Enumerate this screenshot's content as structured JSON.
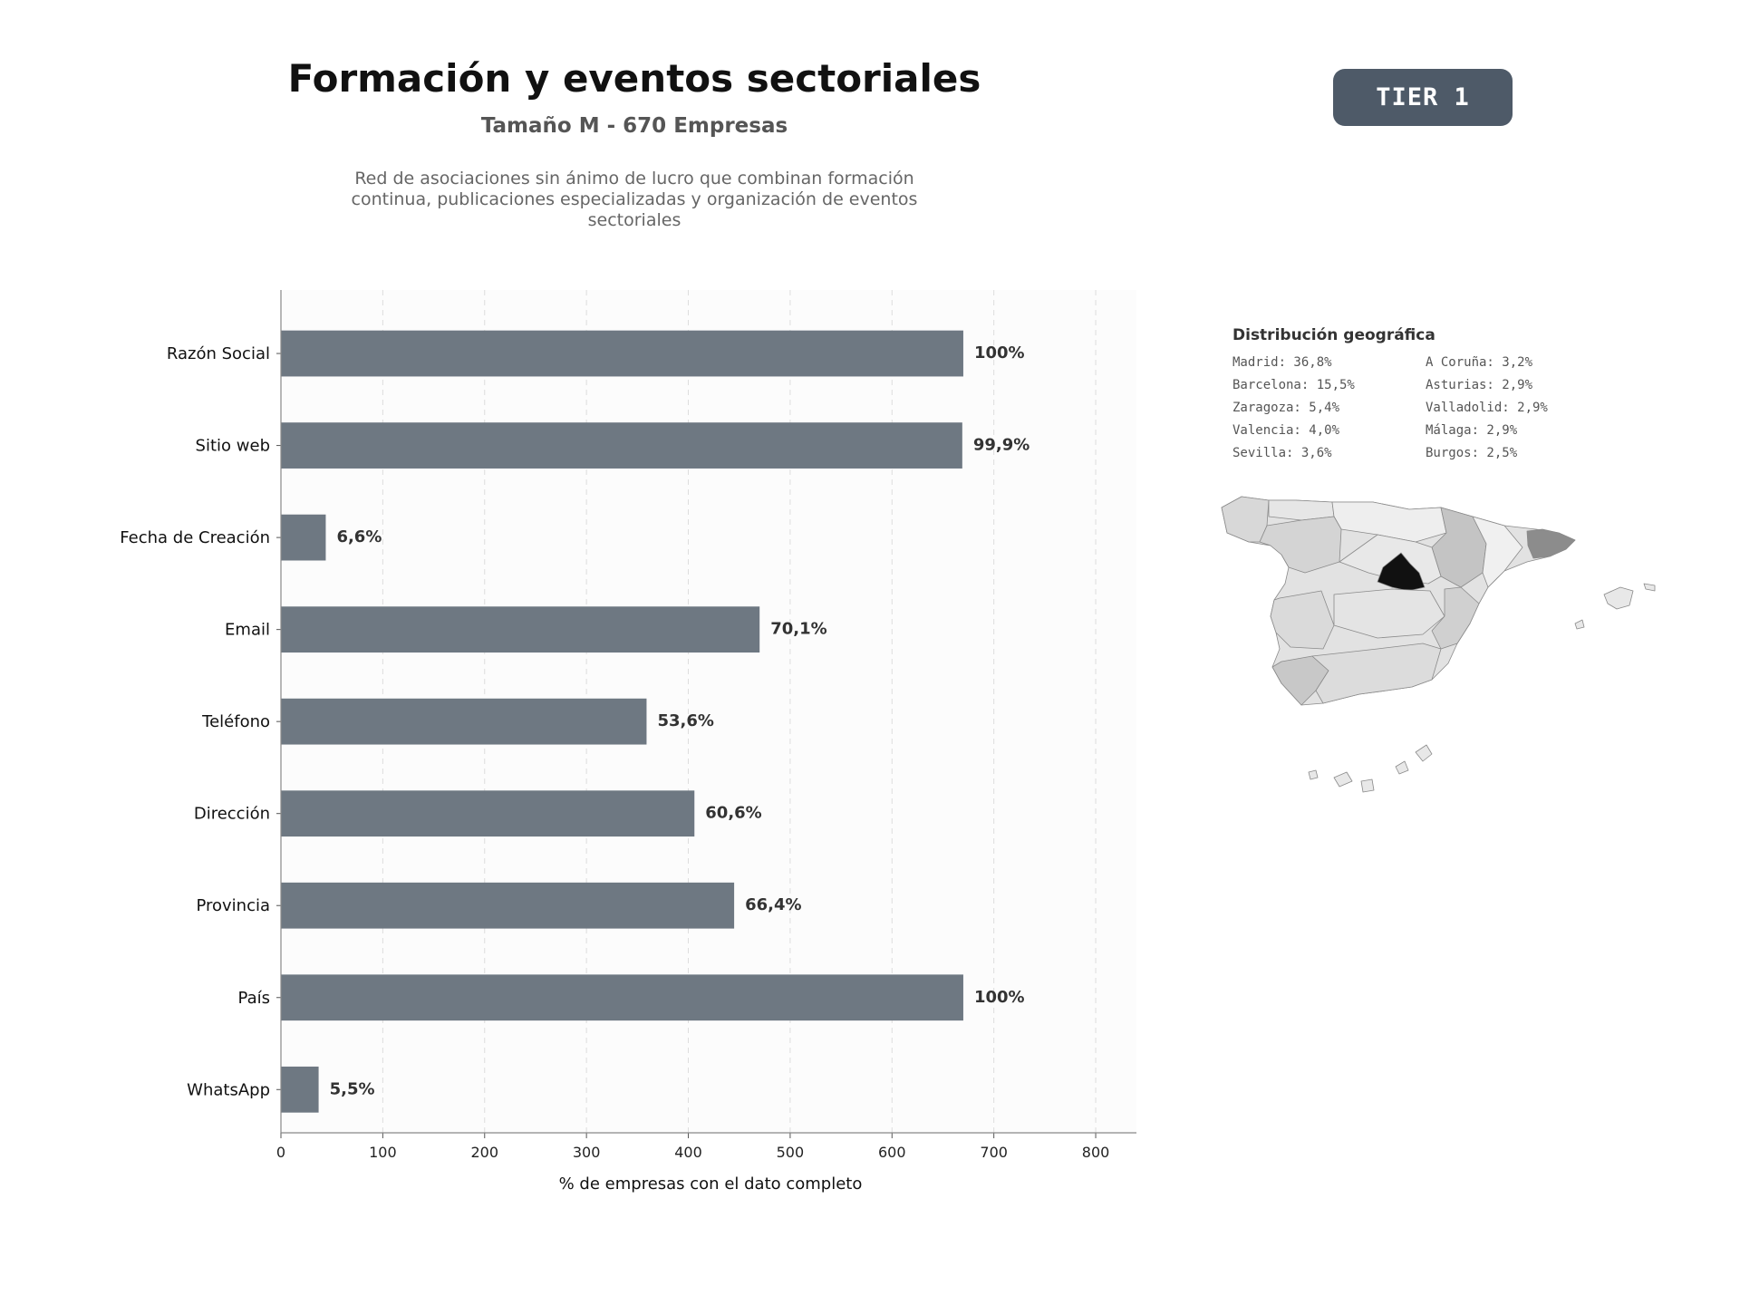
{
  "header": {
    "title": "Formación y eventos sectoriales",
    "subtitle": "Tamaño M - 670 Empresas",
    "description": "Red de asociaciones sin ánimo de lucro que combinan formación continua, publicaciones especializadas y organización de eventos sectoriales",
    "tier_label": "TIER 1"
  },
  "colors": {
    "bar": "#6e7882",
    "badge": "#4e5a68",
    "gridline": "#dddddd",
    "plot_background": "#fcfcfc"
  },
  "chart_data": {
    "type": "bar",
    "orientation": "horizontal",
    "categories": [
      "Razón Social",
      "Sitio web",
      "Fecha de Creación",
      "Email",
      "Teléfono",
      "Dirección",
      "Provincia",
      "País",
      "WhatsApp"
    ],
    "values": [
      670,
      669,
      44,
      470,
      359,
      406,
      445,
      670,
      37
    ],
    "data_labels": [
      "100%",
      "99,9%",
      "6,6%",
      "70,1%",
      "53,6%",
      "60,6%",
      "66,4%",
      "100%",
      "5,5%"
    ],
    "xlabel": "% de empresas con el dato completo",
    "xlim": [
      0,
      840
    ],
    "xticks": [
      0,
      100,
      200,
      300,
      400,
      500,
      600,
      700,
      800
    ],
    "grid": "vertical dashed"
  },
  "geo": {
    "title": "Distribución geográfica",
    "items": [
      "Madrid: 36,8%",
      "A Coruña: 3,2%",
      "Barcelona: 15,5%",
      "Asturias: 2,9%",
      "Zaragoza: 5,4%",
      "Valladolid: 2,9%",
      "Valencia: 4,0%",
      "Málaga: 2,9%",
      "Sevilla: 3,6%",
      "Burgos: 2,5%"
    ]
  }
}
